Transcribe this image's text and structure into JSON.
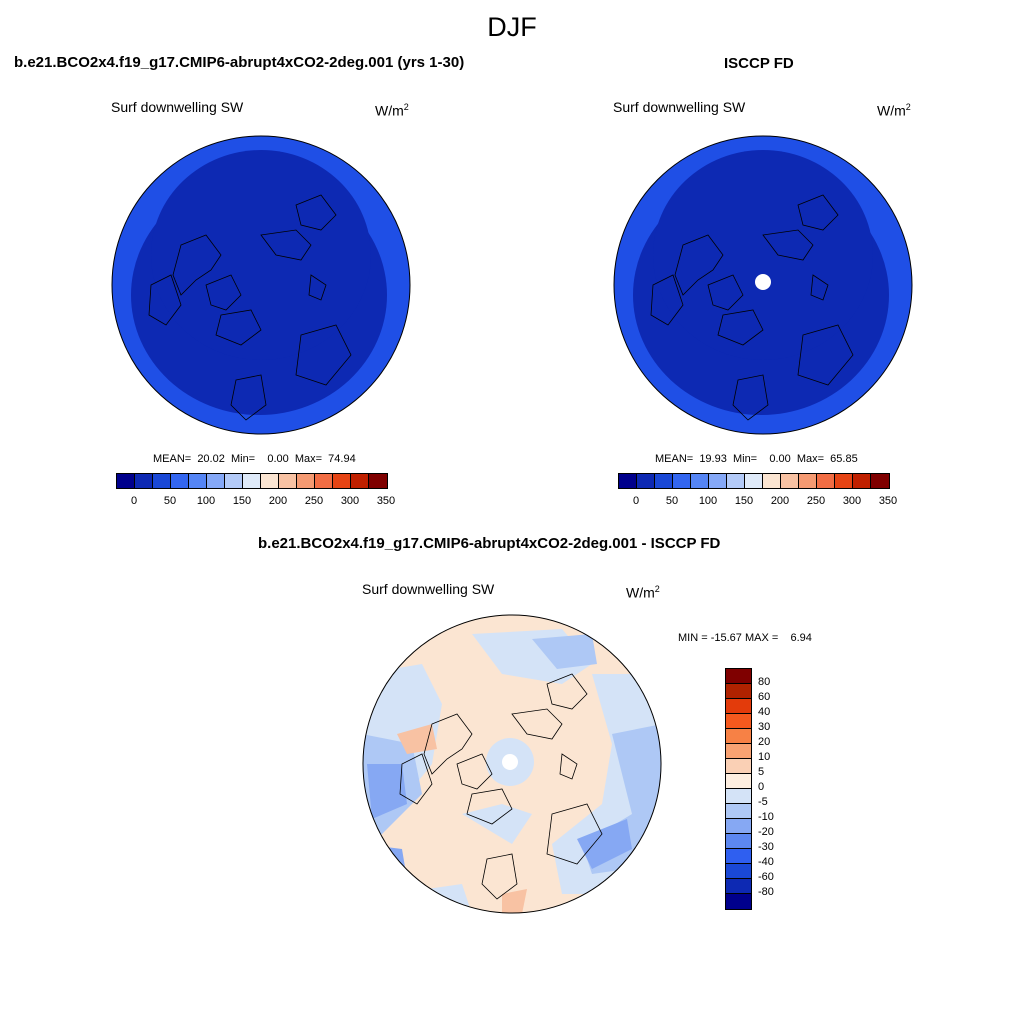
{
  "title": "DJF",
  "panels": [
    {
      "case": "b.e21.BCO2x4.f19_g17.CMIP6-abrupt4xCO2-2deg.001 (yrs 1-30)",
      "variable": "Surf downwelling SW",
      "units_base": "W/m",
      "units_sup": "2",
      "stats": "MEAN=  20.02  Min=    0.00  Max=  74.94"
    },
    {
      "case": "ISCCP FD",
      "variable": "Surf downwelling SW",
      "units_base": "W/m",
      "units_sup": "2",
      "stats": "MEAN=  19.93  Min=    0.00  Max=  65.85"
    },
    {
      "case": "b.e21.BCO2x4.f19_g17.CMIP6-abrupt4xCO2-2deg.001 - ISCCP FD",
      "variable": "Surf downwelling SW",
      "units_base": "W/m",
      "units_sup": "2",
      "stats": "MIN = -15.67 MAX =    6.94"
    }
  ],
  "colorbar_abs": {
    "colors": [
      "#00008c",
      "#0d29b3",
      "#1a48d6",
      "#3366f0",
      "#5585f5",
      "#85a8f7",
      "#b3caf8",
      "#dfeaf9",
      "#fbe5d2",
      "#f8c2a3",
      "#f59a72",
      "#f26d44",
      "#e64414",
      "#c02000",
      "#7f0000"
    ],
    "labels": [
      "0",
      "50",
      "100",
      "150",
      "200",
      "250",
      "300",
      "350"
    ]
  },
  "colorbar_diff": {
    "colors": [
      "#7f0000",
      "#b02200",
      "#e33b0b",
      "#f5591e",
      "#f78145",
      "#f8a272",
      "#fad0b5",
      "#fdeee0",
      "#d4e3f7",
      "#aec8f5",
      "#86a8f3",
      "#5c87f0",
      "#2f5ff0",
      "#1a48d6",
      "#0d29b3",
      "#00008c"
    ],
    "labels": [
      "80",
      "60",
      "40",
      "30",
      "20",
      "10",
      "5",
      "0",
      "-5",
      "-10",
      "-20",
      "-30",
      "-40",
      "-60",
      "-80"
    ]
  },
  "map_colors": {
    "abs_outer": "#1f4fe6",
    "abs_inner": "#0d29b3",
    "diff_base": "#fbe5d2",
    "diff_light_blue": "#d4e3f7",
    "diff_mid_blue": "#aec8f5",
    "diff_blue": "#86a8f3",
    "diff_red": "#f8c2a3",
    "missing": "#ffffff"
  }
}
